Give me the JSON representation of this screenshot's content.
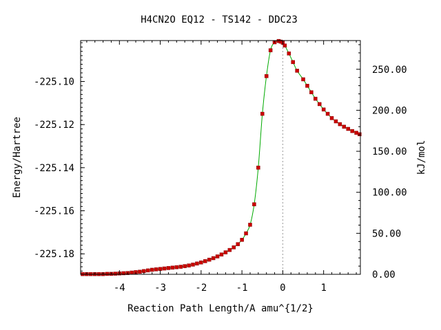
{
  "chart_data": {
    "type": "line",
    "title": "H4CN2O   EQ12 - TS142 - DDC23",
    "xlabel": "Reaction Path Length/A amu^{1/2}",
    "ylabel": "Energy/Hartree",
    "y2label": "kJ/mol",
    "xlim": [
      -4.95,
      1.9
    ],
    "ylim": [
      -225.1895,
      -225.081
    ],
    "y2lim": [
      0,
      285
    ],
    "x_ticks": [
      -4,
      -3,
      -2,
      -1,
      0,
      1
    ],
    "x_tick_labels": [
      "-4",
      "-3",
      "-2",
      "-1",
      "0",
      "1"
    ],
    "y_ticks": [
      -225.18,
      -225.16,
      -225.14,
      -225.12,
      -225.1
    ],
    "y_tick_labels": [
      "-225.18",
      "-225.16",
      "-225.14",
      "-225.12",
      "-225.10"
    ],
    "y2_ticks": [
      0,
      50,
      100,
      150,
      200,
      250
    ],
    "y2_tick_labels": [
      "0.00",
      "50.00",
      "100.00",
      "150.00",
      "200.00",
      "250.00"
    ],
    "ts_marker_x": 0,
    "grid": false,
    "legend": "none",
    "line_color": "#00aa00",
    "marker_color": "#cc0000",
    "ts_line_color": "#999999",
    "series": [
      {
        "x": [
          -4.9,
          -4.8,
          -4.7,
          -4.6,
          -4.5,
          -4.4,
          -4.3,
          -4.2,
          -4.1,
          -4.0,
          -3.9,
          -3.8,
          -3.7,
          -3.6,
          -3.5,
          -3.4,
          -3.3,
          -3.2,
          -3.1,
          -3.0,
          -2.9,
          -2.8,
          -2.7,
          -2.6,
          -2.5,
          -2.4,
          -2.3,
          -2.2,
          -2.1,
          -2.0,
          -1.9,
          -1.8,
          -1.7,
          -1.6,
          -1.5,
          -1.4,
          -1.3,
          -1.2,
          -1.1,
          -1.0,
          -0.9,
          -0.8,
          -0.7,
          -0.6,
          -0.5,
          -0.4,
          -0.3,
          -0.2,
          -0.1,
          -0.05,
          0.0,
          0.05,
          0.15,
          0.25,
          0.35,
          0.5,
          0.6,
          0.7,
          0.8,
          0.9,
          1.0,
          1.1,
          1.2,
          1.3,
          1.4,
          1.5,
          1.6,
          1.7,
          1.8,
          1.88
        ],
        "y": [
          -225.1894,
          -225.1894,
          -225.1894,
          -225.1894,
          -225.1894,
          -225.1894,
          -225.1893,
          -225.1893,
          -225.1892,
          -225.1891,
          -225.189,
          -225.1889,
          -225.1887,
          -225.1885,
          -225.1883,
          -225.188,
          -225.1877,
          -225.1874,
          -225.1872,
          -225.187,
          -225.1868,
          -225.1866,
          -225.1864,
          -225.1862,
          -225.186,
          -225.1857,
          -225.1854,
          -225.185,
          -225.1845,
          -225.184,
          -225.1834,
          -225.1827,
          -225.182,
          -225.1812,
          -225.1803,
          -225.1793,
          -225.1782,
          -225.177,
          -225.1755,
          -225.1735,
          -225.1705,
          -225.1665,
          -225.157,
          -225.14,
          -225.115,
          -225.0975,
          -225.0855,
          -225.0818,
          -225.0812,
          -225.0815,
          -225.082,
          -225.0833,
          -225.087,
          -225.091,
          -225.095,
          -225.099,
          -225.102,
          -225.105,
          -225.108,
          -225.1105,
          -225.113,
          -225.115,
          -225.117,
          -225.1185,
          -225.1198,
          -225.121,
          -225.122,
          -225.123,
          -225.1238,
          -225.1245
        ]
      }
    ]
  }
}
